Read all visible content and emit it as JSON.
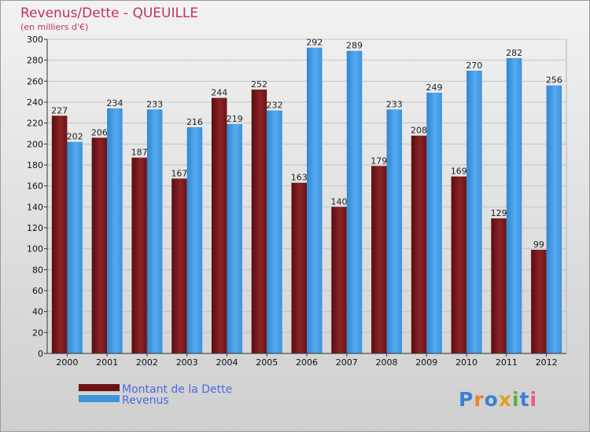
{
  "chart_data": {
    "type": "bar",
    "title": "Revenus/Dette - QUEUILLE",
    "subtitle": "(en milliers d'€)",
    "categories": [
      "2000",
      "2001",
      "2002",
      "2003",
      "2004",
      "2005",
      "2006",
      "2007",
      "2008",
      "2009",
      "2010",
      "2011",
      "2012"
    ],
    "series": [
      {
        "name": "Montant de la Dette",
        "color": "#7a1a1e",
        "values": [
          227,
          206,
          187,
          167,
          244,
          252,
          163,
          140,
          179,
          208,
          169,
          129,
          99
        ]
      },
      {
        "name": "Revenus",
        "color": "#3d95dd",
        "values": [
          202,
          234,
          233,
          216,
          219,
          232,
          292,
          289,
          233,
          249,
          270,
          282,
          256
        ]
      }
    ],
    "yticks": [
      0,
      20,
      40,
      60,
      80,
      100,
      120,
      140,
      160,
      180,
      200,
      220,
      240,
      260,
      280,
      300
    ],
    "ylim": [
      0,
      300
    ],
    "grid": true,
    "legend_position": "bottom-left"
  },
  "branding": {
    "logo_text": "Proxiti"
  }
}
